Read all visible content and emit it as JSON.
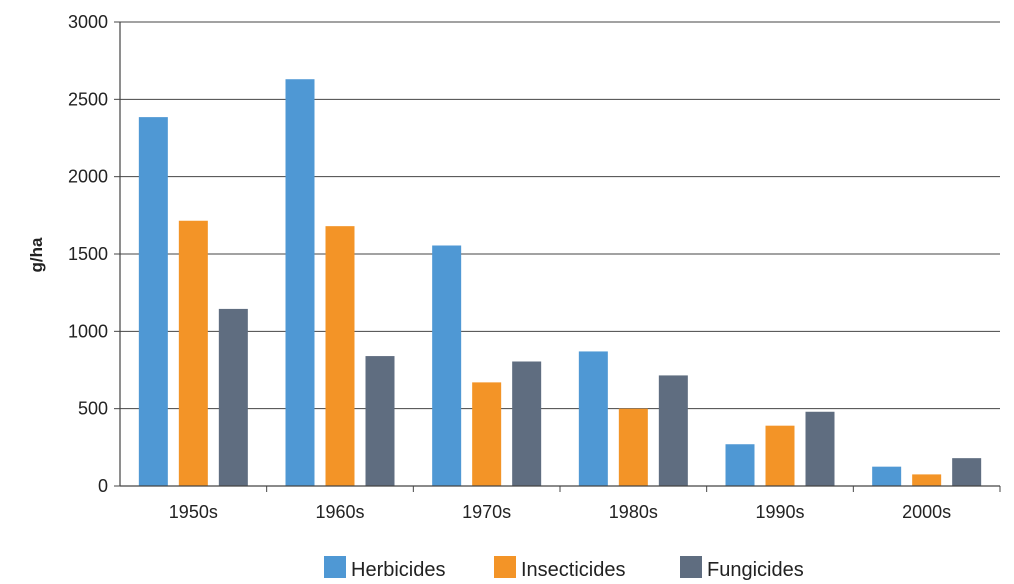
{
  "chart_data": {
    "type": "bar",
    "title": "",
    "xlabel": "",
    "ylabel": "g/ha",
    "categories": [
      "1950s",
      "1960s",
      "1970s",
      "1980s",
      "1990s",
      "2000s"
    ],
    "series": [
      {
        "name": "Herbicides",
        "color": "#4f98d4",
        "values": [
          2385,
          2630,
          1555,
          870,
          270,
          125
        ]
      },
      {
        "name": "Insecticides",
        "color": "#f39427",
        "values": [
          1715,
          1680,
          670,
          500,
          390,
          75
        ]
      },
      {
        "name": "Fungicides",
        "color": "#5f6d80",
        "values": [
          1145,
          840,
          805,
          715,
          480,
          180
        ]
      }
    ],
    "ylim": [
      0,
      3000
    ],
    "yticks": [
      0,
      500,
      1000,
      1500,
      2000,
      2500,
      3000
    ],
    "grid": true,
    "legend_position": "bottom"
  }
}
